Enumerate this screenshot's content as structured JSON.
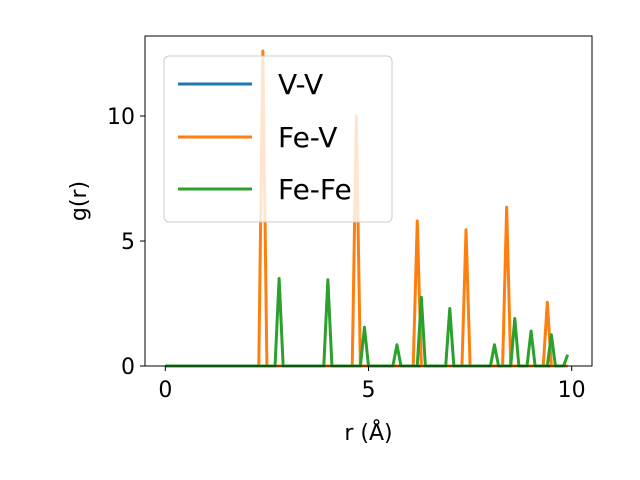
{
  "chart_data": {
    "type": "line",
    "title": "",
    "xlabel": "r (Å)",
    "ylabel": "g(r)",
    "xlim": [
      -0.5,
      10.5
    ],
    "ylim": [
      0,
      13.2
    ],
    "xticks": [
      0,
      5,
      10
    ],
    "yticks": [
      0,
      5,
      10
    ],
    "grid": false,
    "legend_position": "upper-left",
    "series": [
      {
        "name": "V-V",
        "color": "#1f77b4",
        "points": [
          [
            0,
            0
          ],
          [
            9.9,
            0
          ]
        ]
      },
      {
        "name": "Fe-V",
        "color": "#ff7f0e",
        "points": [
          [
            0,
            0
          ],
          [
            2.3,
            0
          ],
          [
            2.4,
            12.6
          ],
          [
            2.5,
            0
          ],
          [
            4.6,
            0
          ],
          [
            4.7,
            10.0
          ],
          [
            4.8,
            0
          ],
          [
            6.1,
            0
          ],
          [
            6.2,
            5.8
          ],
          [
            6.3,
            0
          ],
          [
            7.3,
            0
          ],
          [
            7.4,
            5.45
          ],
          [
            7.5,
            0
          ],
          [
            8.3,
            0
          ],
          [
            8.4,
            6.35
          ],
          [
            8.5,
            0
          ],
          [
            9.3,
            0
          ],
          [
            9.4,
            2.55
          ],
          [
            9.5,
            0
          ],
          [
            9.9,
            0
          ]
        ]
      },
      {
        "name": "Fe-Fe",
        "color": "#2ca02c",
        "points": [
          [
            0,
            0
          ],
          [
            2.7,
            0
          ],
          [
            2.8,
            3.5
          ],
          [
            2.9,
            0
          ],
          [
            3.9,
            0
          ],
          [
            4.0,
            3.45
          ],
          [
            4.1,
            0
          ],
          [
            4.8,
            0
          ],
          [
            4.9,
            1.55
          ],
          [
            5.0,
            0
          ],
          [
            5.6,
            0
          ],
          [
            5.7,
            0.85
          ],
          [
            5.8,
            0
          ],
          [
            6.2,
            0
          ],
          [
            6.3,
            2.75
          ],
          [
            6.4,
            0
          ],
          [
            6.9,
            0
          ],
          [
            7.0,
            2.3
          ],
          [
            7.1,
            0
          ],
          [
            8.0,
            0
          ],
          [
            8.1,
            0.85
          ],
          [
            8.2,
            0
          ],
          [
            8.5,
            0
          ],
          [
            8.6,
            1.9
          ],
          [
            8.7,
            0
          ],
          [
            8.9,
            0
          ],
          [
            9.0,
            1.4
          ],
          [
            9.1,
            0
          ],
          [
            9.4,
            0
          ],
          [
            9.5,
            1.25
          ],
          [
            9.6,
            0
          ],
          [
            9.8,
            0
          ],
          [
            9.9,
            0.45
          ]
        ]
      }
    ]
  }
}
